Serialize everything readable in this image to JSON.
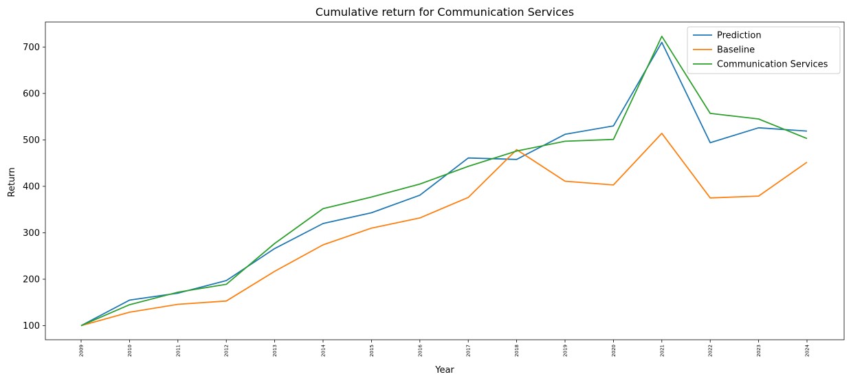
{
  "chart_data": {
    "type": "line",
    "title": "Cumulative return for Communication Services",
    "xlabel": "Year",
    "ylabel": "Return",
    "categories": [
      "2009",
      "2010",
      "2011",
      "2012",
      "2013",
      "2014",
      "2015",
      "2016",
      "2017",
      "2018",
      "2019",
      "2020",
      "2021",
      "2022",
      "2023",
      "2024"
    ],
    "yticks": [
      100,
      200,
      300,
      400,
      500,
      600,
      700
    ],
    "ylim": [
      69.7,
      753.8
    ],
    "grid": false,
    "legend_position": "top-right",
    "series": [
      {
        "name": "Prediction",
        "color": "#1f77b4",
        "values": [
          100,
          155,
          170,
          197,
          266,
          320,
          343,
          381,
          461,
          458,
          512,
          530,
          710,
          494,
          526,
          519
        ]
      },
      {
        "name": "Baseline",
        "color": "#ff7f0e",
        "values": [
          100,
          129,
          146,
          153,
          217,
          274,
          310,
          332,
          376,
          479,
          411,
          403,
          514,
          375,
          379,
          452
        ]
      },
      {
        "name": "Communication Services",
        "color": "#2ca02c",
        "values": [
          100,
          145,
          172,
          189,
          277,
          352,
          377,
          405,
          443,
          476,
          497,
          501,
          723,
          557,
          545,
          503
        ]
      }
    ]
  }
}
